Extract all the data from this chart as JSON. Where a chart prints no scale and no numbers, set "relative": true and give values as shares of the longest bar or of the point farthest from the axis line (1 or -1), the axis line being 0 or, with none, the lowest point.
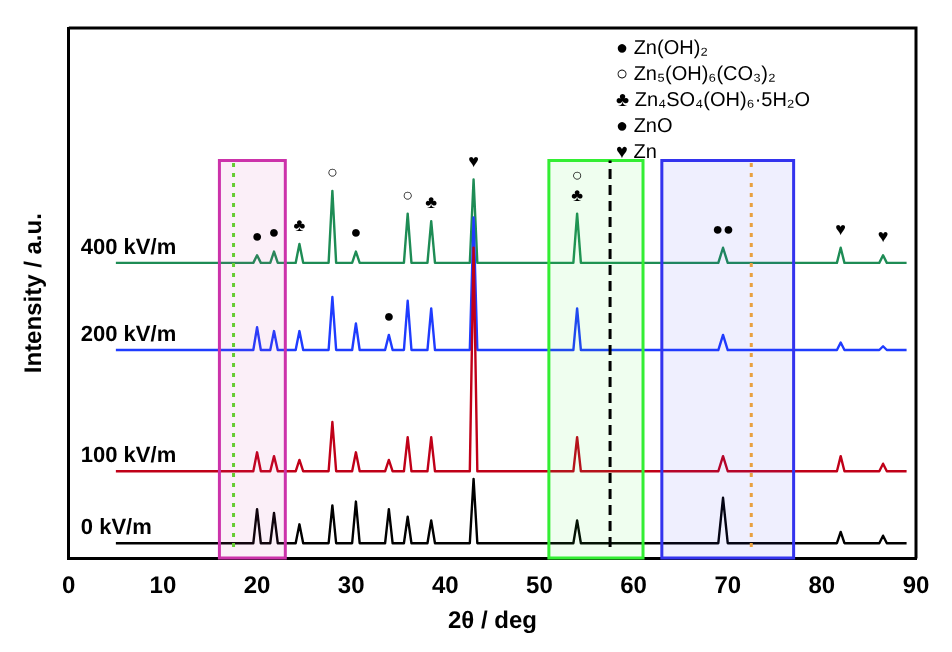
{
  "chart_data": {
    "type": "line",
    "relative": true,
    "xlabel": "2θ / deg",
    "ylabel": "Intensity / a.u.",
    "xlim": [
      0,
      90
    ],
    "xticks": [
      0,
      10,
      20,
      30,
      40,
      50,
      60,
      70,
      80,
      90
    ],
    "legend": false,
    "grid": false,
    "series": [
      {
        "name": "0 kV/m",
        "color": "#000000",
        "x": [
          5,
          19.6,
          20,
          20.4,
          21.4,
          21.8,
          22.2,
          24.1,
          24.5,
          24.9,
          27.6,
          28,
          28.4,
          30.1,
          30.5,
          30.9,
          33.6,
          34,
          34.4,
          35.6,
          36,
          36.4,
          38.1,
          38.5,
          38.9,
          42.6,
          43,
          43.4,
          53.6,
          54,
          54.4,
          69,
          69.5,
          70,
          81.6,
          82,
          82.4,
          86.1,
          86.5,
          86.9,
          89
        ],
        "values": [
          0.04,
          0.04,
          0.13,
          0.04,
          0.04,
          0.12,
          0.04,
          0.04,
          0.09,
          0.04,
          0.04,
          0.14,
          0.04,
          0.04,
          0.15,
          0.04,
          0.04,
          0.13,
          0.04,
          0.04,
          0.11,
          0.04,
          0.04,
          0.1,
          0.04,
          0.04,
          0.21,
          0.04,
          0.04,
          0.1,
          0.04,
          0.04,
          0.16,
          0.04,
          0.04,
          0.07,
          0.04,
          0.04,
          0.06,
          0.04,
          0.04
        ]
      },
      {
        "name": "100 kV/m",
        "color": "#c00018",
        "x": [
          5,
          19.6,
          20,
          20.4,
          21.4,
          21.8,
          22.2,
          24.1,
          24.5,
          24.9,
          27.6,
          28,
          28.4,
          30.1,
          30.5,
          30.9,
          33.6,
          34,
          34.4,
          35.6,
          36,
          36.4,
          38.1,
          38.5,
          38.9,
          42.6,
          43,
          43.4,
          53.6,
          54,
          54.4,
          69,
          69.5,
          70,
          81.6,
          82,
          82.4,
          86.1,
          86.5,
          86.9,
          89
        ],
        "values": [
          0.23,
          0.23,
          0.28,
          0.23,
          0.23,
          0.27,
          0.23,
          0.23,
          0.26,
          0.23,
          0.23,
          0.36,
          0.23,
          0.23,
          0.28,
          0.23,
          0.23,
          0.26,
          0.23,
          0.23,
          0.32,
          0.23,
          0.23,
          0.32,
          0.23,
          0.23,
          0.82,
          0.23,
          0.23,
          0.32,
          0.23,
          0.23,
          0.27,
          0.23,
          0.23,
          0.27,
          0.23,
          0.23,
          0.25,
          0.23,
          0.23
        ]
      },
      {
        "name": "200 kV/m",
        "color": "#1f3cff",
        "x": [
          5,
          19.6,
          20,
          20.4,
          21.4,
          21.8,
          22.2,
          24.1,
          24.5,
          24.9,
          27.6,
          28,
          28.4,
          30.1,
          30.5,
          30.9,
          33.6,
          34,
          34.4,
          35.6,
          36,
          36.4,
          38.1,
          38.5,
          38.9,
          42.6,
          43,
          43.4,
          53.6,
          54,
          54.4,
          69,
          69.5,
          70,
          81.6,
          82,
          82.4,
          86.1,
          86.5,
          86.9,
          89
        ],
        "values": [
          0.55,
          0.55,
          0.61,
          0.55,
          0.55,
          0.6,
          0.55,
          0.55,
          0.6,
          0.55,
          0.55,
          0.69,
          0.55,
          0.55,
          0.62,
          0.55,
          0.55,
          0.59,
          0.55,
          0.55,
          0.68,
          0.55,
          0.55,
          0.66,
          0.55,
          0.55,
          0.9,
          0.55,
          0.55,
          0.66,
          0.55,
          0.55,
          0.59,
          0.55,
          0.55,
          0.57,
          0.55,
          0.55,
          0.56,
          0.55,
          0.55
        ]
      },
      {
        "name": "400 kV/m",
        "color": "#1e8c55",
        "x": [
          5,
          19.6,
          20,
          20.4,
          21.4,
          21.8,
          22.2,
          24.1,
          24.5,
          24.9,
          27.6,
          28,
          28.4,
          30.1,
          30.5,
          30.9,
          35.6,
          36,
          36.4,
          38.1,
          38.5,
          38.9,
          42.6,
          43,
          43.4,
          53.6,
          54,
          54.4,
          69,
          69.5,
          70,
          81.6,
          82,
          82.4,
          86.1,
          86.5,
          86.9,
          89
        ],
        "values": [
          0.78,
          0.78,
          0.8,
          0.78,
          0.78,
          0.81,
          0.78,
          0.78,
          0.83,
          0.78,
          0.78,
          0.97,
          0.78,
          0.78,
          0.81,
          0.78,
          0.78,
          0.91,
          0.78,
          0.78,
          0.89,
          0.78,
          0.78,
          1.0,
          0.78,
          0.78,
          0.91,
          0.78,
          0.78,
          0.82,
          0.78,
          0.78,
          0.82,
          0.78,
          0.78,
          0.8,
          0.78,
          0.78
        ]
      }
    ],
    "ref_lines": [
      {
        "axis": "x",
        "value": 17.5,
        "color": "#66cc33",
        "line_style": "dotted"
      },
      {
        "axis": "x",
        "value": 57.5,
        "color": "#000000",
        "line_style": "dashed"
      },
      {
        "axis": "x",
        "value": 72.5,
        "color": "#e8a040",
        "line_style": "dotted"
      }
    ],
    "bands": [
      {
        "axis": "x",
        "from": 16,
        "to": 23,
        "color": "#cc33aa"
      },
      {
        "axis": "x",
        "from": 51,
        "to": 61,
        "color": "#33ee33"
      },
      {
        "axis": "x",
        "from": 63,
        "to": 77,
        "color": "#3333ee"
      }
    ],
    "annotations": [
      "● Zn(OH)₂",
      "○ Zn₅(OH)₆(CO₃)₂",
      "♣ Zn₄SO₄(OH)₆·5H₂O",
      "● ZnO",
      "♥ Zn",
      {
        "text": "●",
        "x": 20,
        "y": 0.8
      },
      {
        "text": "●",
        "x": 21.8,
        "y": 0.81
      },
      {
        "text": "♣",
        "x": 24.5,
        "y": 0.83
      },
      {
        "text": "○",
        "x": 28,
        "y": 0.97
      },
      {
        "text": "●",
        "x": 30.5,
        "y": 0.81
      },
      {
        "text": "●",
        "x": 34,
        "y": 0.59
      },
      {
        "text": "○",
        "x": 36,
        "y": 0.91
      },
      {
        "text": "♣",
        "x": 38.5,
        "y": 0.89
      },
      {
        "text": "♥",
        "x": 43,
        "y": 1.0
      },
      {
        "text": "♣",
        "x": 54,
        "y": 0.91
      },
      {
        "text": "○",
        "x": 54,
        "y": 0.91
      },
      {
        "text": "●●",
        "x": 69.5,
        "y": 0.82
      },
      {
        "text": "♥",
        "x": 82,
        "y": 0.82
      },
      {
        "text": "♥",
        "x": 86.5,
        "y": 0.8
      }
    ]
  }
}
